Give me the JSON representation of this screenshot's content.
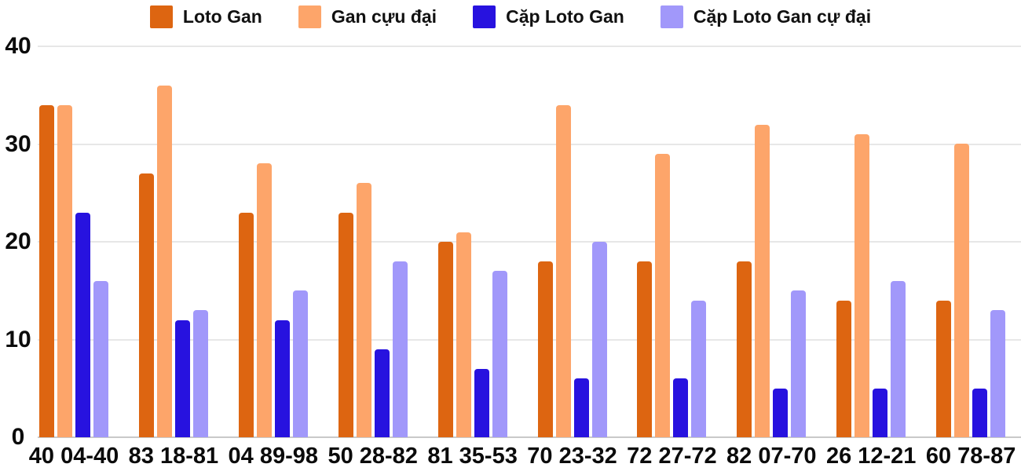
{
  "chart_data": {
    "type": "bar",
    "title": "",
    "xlabel": "",
    "ylabel": "",
    "categories": [
      "40 04-40",
      "83 18-81",
      "04 89-98",
      "50 28-82",
      "81 35-53",
      "70 23-32",
      "72 27-72",
      "82 07-70",
      "26 12-21",
      "60 78-87"
    ],
    "series": [
      {
        "name": "Loto Gan",
        "color": "#dd6511",
        "values": [
          34,
          27,
          23,
          23,
          20,
          18,
          18,
          18,
          14,
          14
        ]
      },
      {
        "name": "Gan cựu đại",
        "color": "#fda56a",
        "values": [
          34,
          36,
          28,
          26,
          21,
          34,
          29,
          32,
          31,
          30
        ]
      },
      {
        "name": "Cặp Loto Gan",
        "color": "#2712df",
        "values": [
          23,
          12,
          12,
          9,
          7,
          6,
          6,
          5,
          5,
          5
        ]
      },
      {
        "name": "Cặp Loto Gan cự đại",
        "color": "#a198fa",
        "values": [
          16,
          13,
          15,
          18,
          17,
          20,
          14,
          15,
          16,
          13
        ]
      }
    ],
    "ylim": [
      0,
      40
    ],
    "yticks": [
      0,
      10,
      20,
      30,
      40
    ],
    "ytick_labels": [
      "0",
      "10",
      "20",
      "30",
      "40"
    ],
    "grid": true,
    "legend_position": "top"
  },
  "colors": {
    "background": "#ffffff",
    "gridline": "#e7e7e7",
    "zero_line": "#c9c9c9",
    "text": "#0b0b0b"
  }
}
